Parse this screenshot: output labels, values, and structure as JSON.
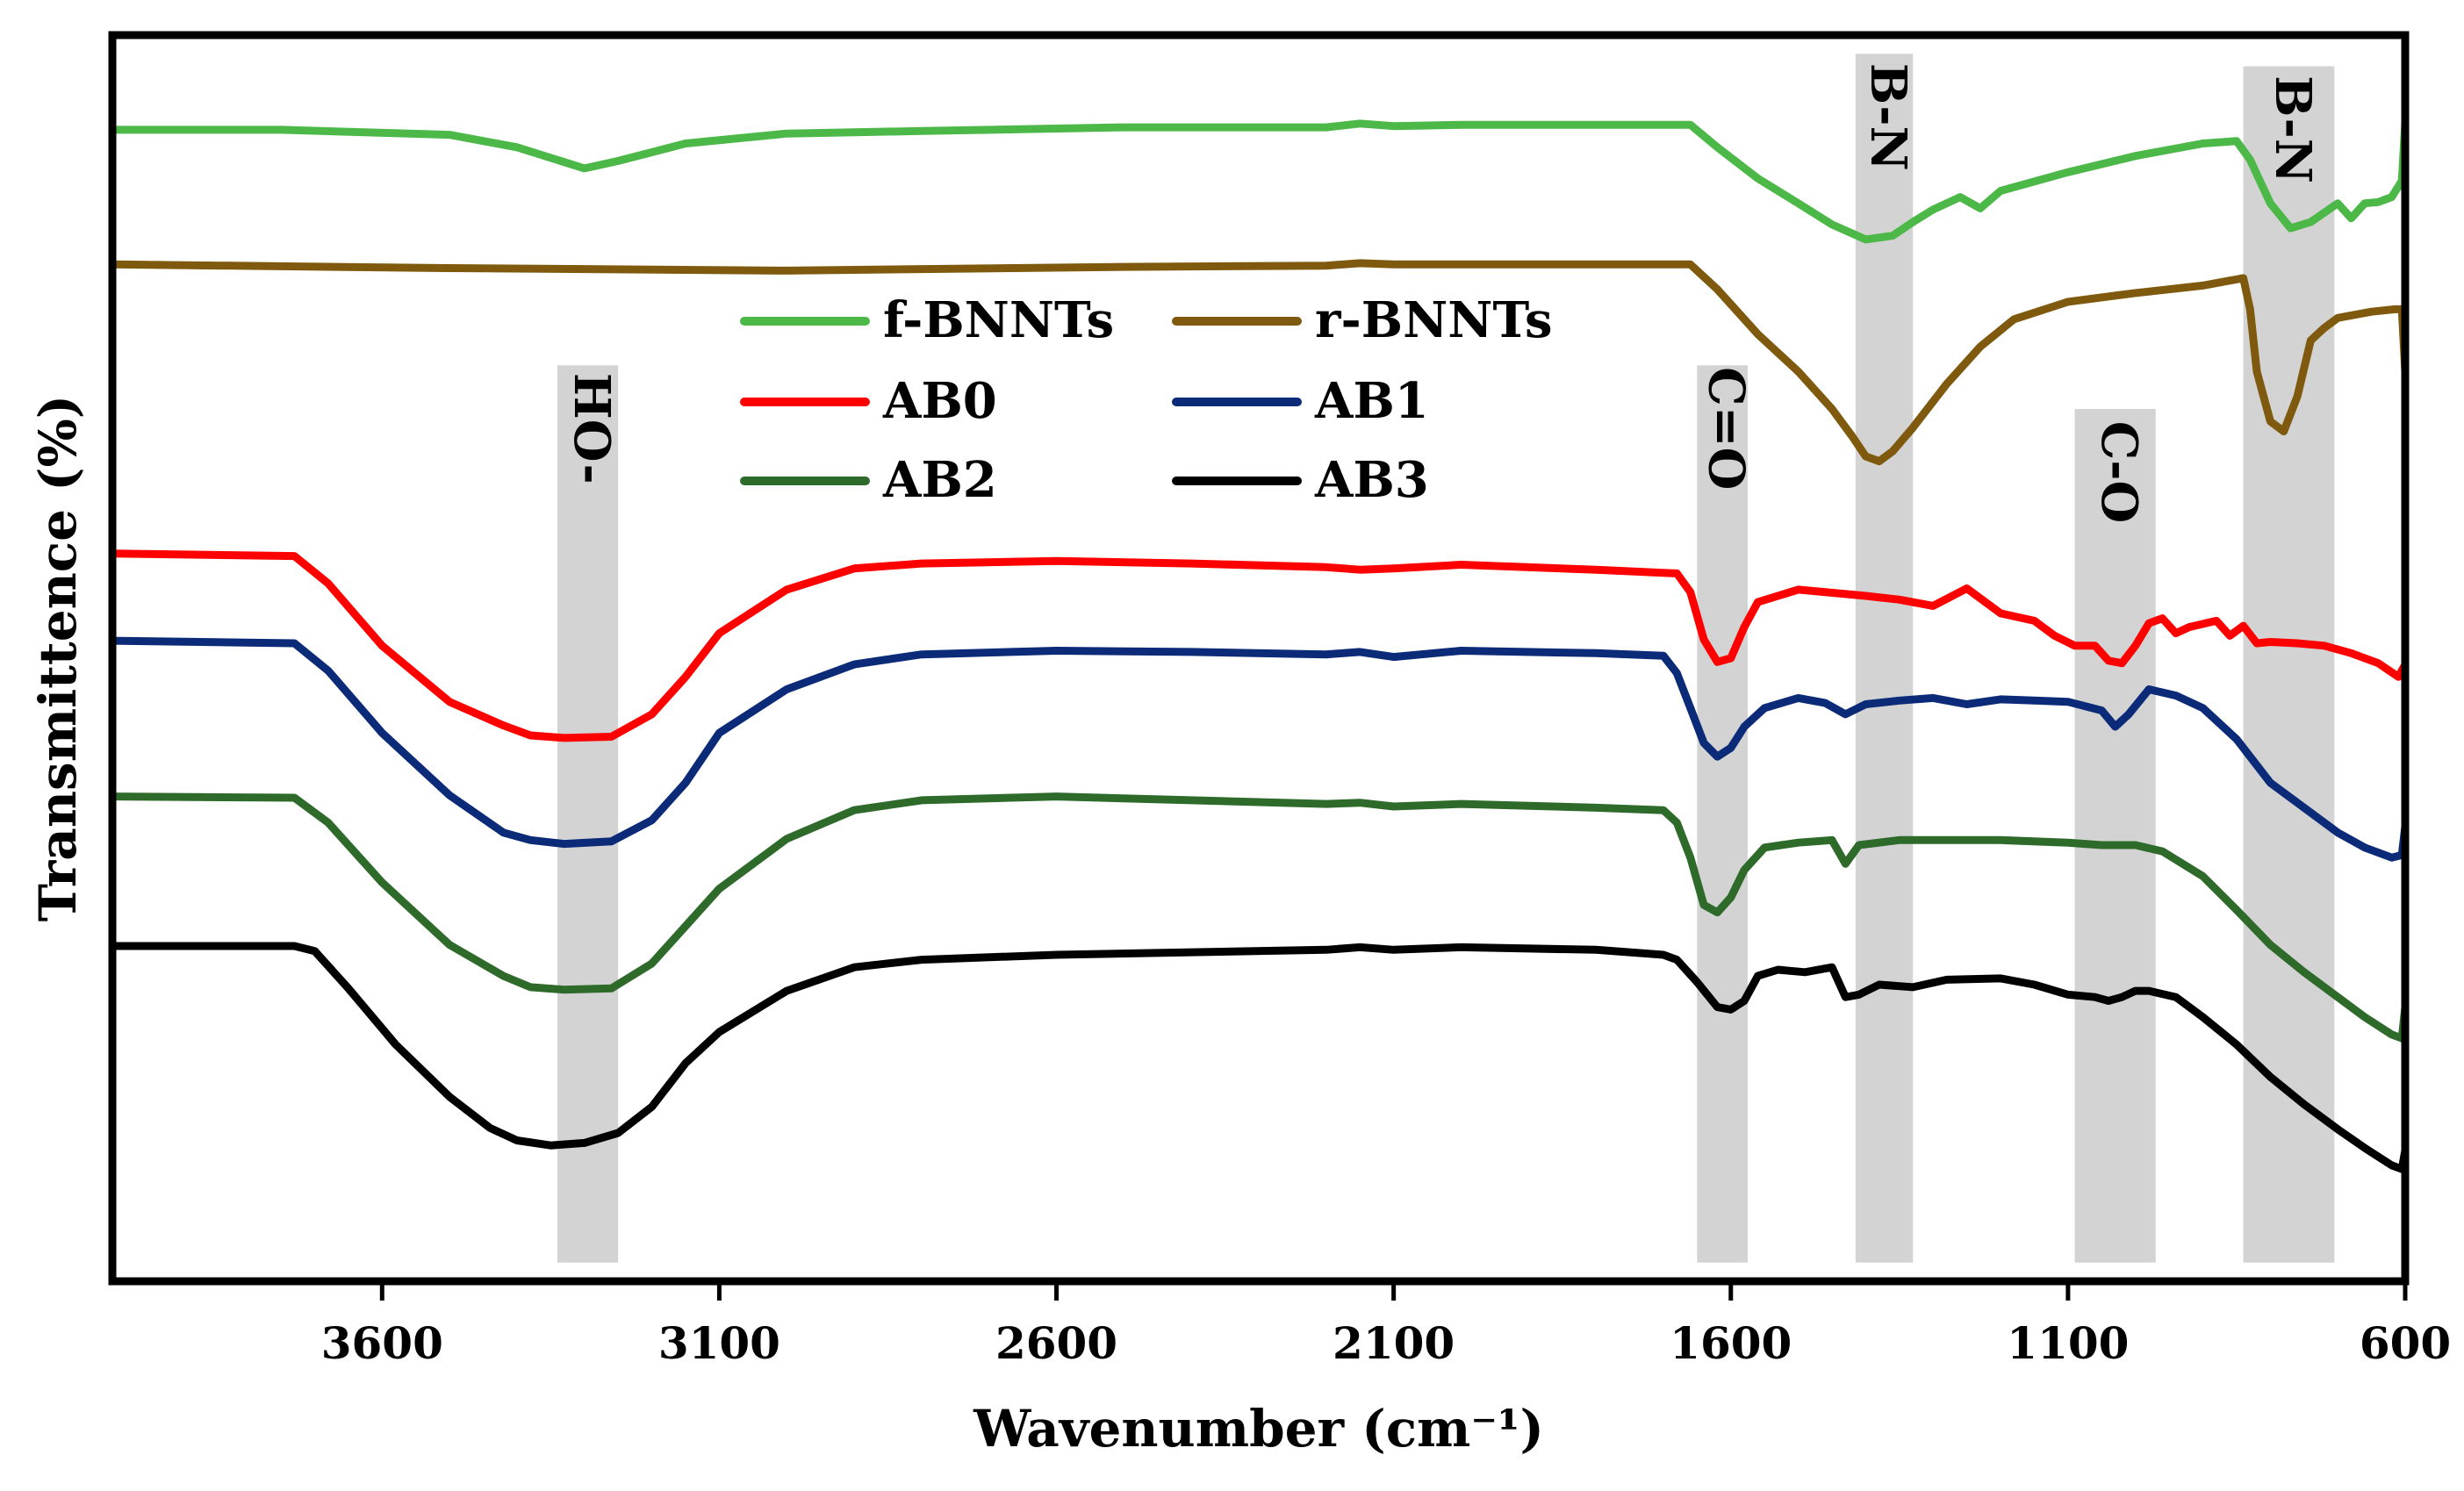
{
  "chart_data": {
    "type": "line",
    "title": "",
    "xlabel": "Wavenumber (cm⁻¹)",
    "ylabel": "Transmittence (%)",
    "xlim": [
      4000,
      600
    ],
    "x_reversed": true,
    "xticks": [
      3600,
      3100,
      2600,
      2100,
      1600,
      1100,
      600
    ],
    "ylim": [
      0,
      100
    ],
    "yticks": [],
    "grid": false,
    "legend_position": "top-center",
    "colors": {
      "f-BNNTs": "#4cb848",
      "r-BNNTs": "#7f5a0e",
      "AB0": "#ff0000",
      "AB1": "#0b2a78",
      "AB2": "#2e6b2a",
      "AB3": "#000000",
      "band": "#d3d3d3"
    },
    "bands": [
      {
        "label": "HO-",
        "x_from": 3340,
        "x_to": 3250,
        "y_from": 1.5,
        "y_to": 73.5
      },
      {
        "label": "C=O",
        "x_from": 1650,
        "x_to": 1575,
        "y_from": 1.5,
        "y_to": 73.5
      },
      {
        "label": "B-N",
        "x_from": 1415,
        "x_to": 1330,
        "y_from": 1.5,
        "y_to": 98.5
      },
      {
        "label": "C-O",
        "x_from": 1090,
        "x_to": 970,
        "y_from": 1.5,
        "y_to": 70.0
      },
      {
        "label": "B-N",
        "x_from": 840,
        "x_to": 705,
        "y_from": 1.5,
        "y_to": 97.5
      }
    ],
    "series": [
      {
        "name": "f-BNNTs",
        "points": [
          [
            4000,
            92.4
          ],
          [
            3750,
            92.4
          ],
          [
            3500,
            92.0
          ],
          [
            3400,
            91.0
          ],
          [
            3300,
            89.3
          ],
          [
            3250,
            89.9
          ],
          [
            3150,
            91.3
          ],
          [
            3000,
            92.1
          ],
          [
            2800,
            92.3
          ],
          [
            2500,
            92.6
          ],
          [
            2200,
            92.6
          ],
          [
            2150,
            92.9
          ],
          [
            2100,
            92.7
          ],
          [
            2000,
            92.8
          ],
          [
            1850,
            92.8
          ],
          [
            1660,
            92.8
          ],
          [
            1620,
            91.0
          ],
          [
            1560,
            88.5
          ],
          [
            1500,
            86.5
          ],
          [
            1450,
            84.8
          ],
          [
            1400,
            83.6
          ],
          [
            1360,
            83.9
          ],
          [
            1330,
            85.0
          ],
          [
            1300,
            86.0
          ],
          [
            1260,
            87.0
          ],
          [
            1230,
            86.1
          ],
          [
            1200,
            87.5
          ],
          [
            1100,
            89.0
          ],
          [
            1000,
            90.3
          ],
          [
            900,
            91.3
          ],
          [
            850,
            91.5
          ],
          [
            830,
            90.0
          ],
          [
            800,
            86.5
          ],
          [
            770,
            84.5
          ],
          [
            740,
            85.0
          ],
          [
            700,
            86.5
          ],
          [
            680,
            85.3
          ],
          [
            660,
            86.5
          ],
          [
            640,
            86.6
          ],
          [
            620,
            87.0
          ],
          [
            605,
            88.3
          ],
          [
            600,
            93.0
          ]
        ]
      },
      {
        "name": "r-BNNTs",
        "points": [
          [
            4000,
            81.6
          ],
          [
            3500,
            81.3
          ],
          [
            3000,
            81.1
          ],
          [
            2500,
            81.4
          ],
          [
            2200,
            81.5
          ],
          [
            2150,
            81.7
          ],
          [
            2100,
            81.6
          ],
          [
            1800,
            81.6
          ],
          [
            1660,
            81.6
          ],
          [
            1620,
            79.6
          ],
          [
            1560,
            76.0
          ],
          [
            1500,
            73.0
          ],
          [
            1450,
            70.0
          ],
          [
            1420,
            67.8
          ],
          [
            1400,
            66.2
          ],
          [
            1380,
            65.8
          ],
          [
            1360,
            66.6
          ],
          [
            1330,
            68.5
          ],
          [
            1280,
            72.0
          ],
          [
            1230,
            75.0
          ],
          [
            1180,
            77.2
          ],
          [
            1100,
            78.6
          ],
          [
            1000,
            79.3
          ],
          [
            900,
            79.9
          ],
          [
            840,
            80.5
          ],
          [
            830,
            78.0
          ],
          [
            820,
            73.0
          ],
          [
            800,
            69.0
          ],
          [
            780,
            68.2
          ],
          [
            760,
            71.0
          ],
          [
            740,
            75.5
          ],
          [
            720,
            76.5
          ],
          [
            700,
            77.3
          ],
          [
            650,
            77.8
          ],
          [
            615,
            78.0
          ],
          [
            605,
            78.0
          ],
          [
            600,
            73.0
          ]
        ]
      },
      {
        "name": "AB0",
        "points": [
          [
            4000,
            58.4
          ],
          [
            3730,
            58.2
          ],
          [
            3680,
            56.0
          ],
          [
            3600,
            51.0
          ],
          [
            3500,
            46.5
          ],
          [
            3420,
            44.6
          ],
          [
            3380,
            43.8
          ],
          [
            3330,
            43.6
          ],
          [
            3260,
            43.7
          ],
          [
            3200,
            45.5
          ],
          [
            3150,
            48.5
          ],
          [
            3100,
            52.0
          ],
          [
            3000,
            55.5
          ],
          [
            2900,
            57.2
          ],
          [
            2800,
            57.6
          ],
          [
            2600,
            57.8
          ],
          [
            2400,
            57.6
          ],
          [
            2200,
            57.3
          ],
          [
            2150,
            57.1
          ],
          [
            2100,
            57.2
          ],
          [
            2000,
            57.5
          ],
          [
            1800,
            57.1
          ],
          [
            1680,
            56.8
          ],
          [
            1660,
            55.3
          ],
          [
            1640,
            51.5
          ],
          [
            1620,
            49.7
          ],
          [
            1600,
            50.0
          ],
          [
            1580,
            52.5
          ],
          [
            1560,
            54.5
          ],
          [
            1500,
            55.5
          ],
          [
            1400,
            55.0
          ],
          [
            1350,
            54.7
          ],
          [
            1300,
            54.2
          ],
          [
            1250,
            55.6
          ],
          [
            1200,
            53.6
          ],
          [
            1150,
            53.0
          ],
          [
            1120,
            51.8
          ],
          [
            1090,
            51.0
          ],
          [
            1060,
            51.0
          ],
          [
            1040,
            49.8
          ],
          [
            1020,
            49.6
          ],
          [
            1000,
            51.0
          ],
          [
            980,
            52.8
          ],
          [
            960,
            53.2
          ],
          [
            940,
            52.0
          ],
          [
            920,
            52.5
          ],
          [
            880,
            53.0
          ],
          [
            860,
            51.8
          ],
          [
            840,
            52.6
          ],
          [
            820,
            51.2
          ],
          [
            800,
            51.3
          ],
          [
            760,
            51.2
          ],
          [
            720,
            51.0
          ],
          [
            680,
            50.4
          ],
          [
            640,
            49.6
          ],
          [
            610,
            48.5
          ],
          [
            600,
            49.5
          ]
        ]
      },
      {
        "name": "AB1",
        "points": [
          [
            4000,
            51.4
          ],
          [
            3730,
            51.2
          ],
          [
            3680,
            49.0
          ],
          [
            3600,
            44.0
          ],
          [
            3500,
            39.0
          ],
          [
            3420,
            36.0
          ],
          [
            3380,
            35.4
          ],
          [
            3330,
            35.1
          ],
          [
            3260,
            35.3
          ],
          [
            3200,
            37.0
          ],
          [
            3150,
            40.0
          ],
          [
            3100,
            44.0
          ],
          [
            3000,
            47.5
          ],
          [
            2900,
            49.5
          ],
          [
            2800,
            50.3
          ],
          [
            2600,
            50.6
          ],
          [
            2400,
            50.5
          ],
          [
            2200,
            50.3
          ],
          [
            2150,
            50.5
          ],
          [
            2100,
            50.1
          ],
          [
            2000,
            50.6
          ],
          [
            1800,
            50.4
          ],
          [
            1700,
            50.2
          ],
          [
            1680,
            48.8
          ],
          [
            1660,
            46.0
          ],
          [
            1640,
            43.2
          ],
          [
            1620,
            42.1
          ],
          [
            1600,
            42.8
          ],
          [
            1580,
            44.5
          ],
          [
            1550,
            46.0
          ],
          [
            1500,
            46.8
          ],
          [
            1460,
            46.4
          ],
          [
            1430,
            45.5
          ],
          [
            1400,
            46.3
          ],
          [
            1350,
            46.6
          ],
          [
            1300,
            46.8
          ],
          [
            1250,
            46.3
          ],
          [
            1200,
            46.7
          ],
          [
            1150,
            46.6
          ],
          [
            1100,
            46.5
          ],
          [
            1050,
            45.8
          ],
          [
            1030,
            44.5
          ],
          [
            1010,
            45.5
          ],
          [
            980,
            47.5
          ],
          [
            940,
            47.0
          ],
          [
            900,
            46.0
          ],
          [
            850,
            43.5
          ],
          [
            800,
            40.0
          ],
          [
            750,
            38.0
          ],
          [
            700,
            36.0
          ],
          [
            660,
            34.8
          ],
          [
            620,
            34.0
          ],
          [
            605,
            34.2
          ],
          [
            600,
            36.5
          ]
        ]
      },
      {
        "name": "AB2",
        "points": [
          [
            4000,
            38.9
          ],
          [
            3730,
            38.8
          ],
          [
            3680,
            36.8
          ],
          [
            3600,
            32.0
          ],
          [
            3500,
            27.0
          ],
          [
            3420,
            24.5
          ],
          [
            3380,
            23.6
          ],
          [
            3330,
            23.4
          ],
          [
            3260,
            23.5
          ],
          [
            3200,
            25.5
          ],
          [
            3150,
            28.5
          ],
          [
            3100,
            31.5
          ],
          [
            3000,
            35.5
          ],
          [
            2900,
            37.8
          ],
          [
            2800,
            38.6
          ],
          [
            2600,
            38.9
          ],
          [
            2400,
            38.6
          ],
          [
            2200,
            38.3
          ],
          [
            2150,
            38.4
          ],
          [
            2100,
            38.1
          ],
          [
            2000,
            38.3
          ],
          [
            1800,
            38.0
          ],
          [
            1700,
            37.8
          ],
          [
            1680,
            36.8
          ],
          [
            1660,
            34.0
          ],
          [
            1640,
            30.2
          ],
          [
            1620,
            29.6
          ],
          [
            1600,
            30.8
          ],
          [
            1580,
            33.0
          ],
          [
            1550,
            34.8
          ],
          [
            1500,
            35.2
          ],
          [
            1450,
            35.4
          ],
          [
            1430,
            33.5
          ],
          [
            1410,
            35.0
          ],
          [
            1350,
            35.4
          ],
          [
            1200,
            35.4
          ],
          [
            1100,
            35.2
          ],
          [
            1050,
            35.0
          ],
          [
            1000,
            35.0
          ],
          [
            960,
            34.5
          ],
          [
            900,
            32.5
          ],
          [
            850,
            29.8
          ],
          [
            800,
            27.0
          ],
          [
            750,
            24.8
          ],
          [
            700,
            22.8
          ],
          [
            660,
            21.2
          ],
          [
            620,
            19.8
          ],
          [
            605,
            19.5
          ],
          [
            600,
            22.0
          ]
        ]
      },
      {
        "name": "AB3",
        "points": [
          [
            4000,
            26.9
          ],
          [
            3730,
            26.9
          ],
          [
            3700,
            26.5
          ],
          [
            3650,
            23.5
          ],
          [
            3580,
            19.0
          ],
          [
            3500,
            14.8
          ],
          [
            3440,
            12.3
          ],
          [
            3400,
            11.3
          ],
          [
            3350,
            10.9
          ],
          [
            3300,
            11.1
          ],
          [
            3250,
            11.9
          ],
          [
            3200,
            14.0
          ],
          [
            3150,
            17.5
          ],
          [
            3100,
            20.0
          ],
          [
            3000,
            23.3
          ],
          [
            2900,
            25.2
          ],
          [
            2800,
            25.8
          ],
          [
            2600,
            26.2
          ],
          [
            2400,
            26.4
          ],
          [
            2200,
            26.6
          ],
          [
            2150,
            26.8
          ],
          [
            2100,
            26.6
          ],
          [
            2000,
            26.8
          ],
          [
            1800,
            26.6
          ],
          [
            1700,
            26.2
          ],
          [
            1680,
            25.8
          ],
          [
            1650,
            24.0
          ],
          [
            1620,
            22.0
          ],
          [
            1600,
            21.8
          ],
          [
            1580,
            22.5
          ],
          [
            1560,
            24.5
          ],
          [
            1530,
            25.0
          ],
          [
            1490,
            24.8
          ],
          [
            1450,
            25.2
          ],
          [
            1430,
            22.8
          ],
          [
            1410,
            23.0
          ],
          [
            1380,
            23.8
          ],
          [
            1330,
            23.6
          ],
          [
            1280,
            24.2
          ],
          [
            1200,
            24.3
          ],
          [
            1150,
            23.8
          ],
          [
            1100,
            23.0
          ],
          [
            1060,
            22.8
          ],
          [
            1040,
            22.5
          ],
          [
            1020,
            22.8
          ],
          [
            1000,
            23.3
          ],
          [
            980,
            23.3
          ],
          [
            940,
            22.8
          ],
          [
            900,
            21.2
          ],
          [
            850,
            19.0
          ],
          [
            800,
            16.4
          ],
          [
            750,
            14.2
          ],
          [
            700,
            12.2
          ],
          [
            660,
            10.7
          ],
          [
            620,
            9.3
          ],
          [
            605,
            9.0
          ],
          [
            600,
            10.5
          ]
        ]
      }
    ]
  }
}
